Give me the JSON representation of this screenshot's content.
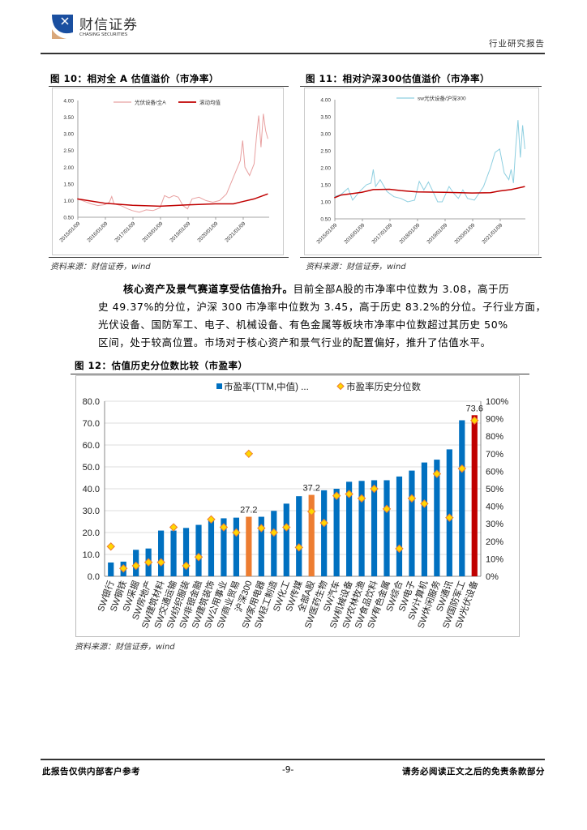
{
  "header": {
    "logo_cn": "财信证券",
    "logo_en": "CHASING SECURITIES",
    "doc_type": "行业研究报告"
  },
  "fig10": {
    "title": "图 10：相对全 A 估值溢价（市净率）",
    "source": "资料来源：财信证券，wind"
  },
  "fig11": {
    "title": "图 11：相对沪深300估值溢价（市净率）",
    "source": "资料来源：财信证券，wind"
  },
  "paragraph": {
    "bold_lead": "核心资产及景气赛道享受估值抬升。",
    "line1_rest": "目前全部A股的市净率中位数为 3.08，高于历",
    "line2": "史 49.37%的分位，沪深 300 市净率中位数为 3.45，高于历史 83.2%的分位。子行业方面，",
    "line3": "光伏设备、国防军工、电子、机械设备、有色金属等板块市净率中位数超过其历史 50%",
    "line4": "区间，处于较高位置。市场对于核心资产和景气行业的配置偏好，推升了估值水平。"
  },
  "fig12": {
    "title": "图 12：估值历史分位数比较（市盈率）",
    "source": "资料来源：财信证券，wind"
  },
  "footer": {
    "left": "此报告仅供内部客户参考",
    "page": "-9-",
    "right": "请务必阅读正文之后的免责条款部分"
  },
  "colors": {
    "bar_blue": "#0070C0",
    "bar_orange": "#ED7D31",
    "bar_red": "#C00000",
    "diamond": "#FFD700",
    "diamond_edge": "#ED7D31",
    "line_pink": "#E8A0A0",
    "line_red": "#C00000",
    "line_cyan": "#8ECFE0"
  },
  "chart_data": [
    {
      "type": "line",
      "title": "图 10：相对全 A 估值溢价（市净率）",
      "ylim": [
        0.5,
        4.0
      ],
      "yticks": [
        "0.50",
        "1.00",
        "1.50",
        "2.00",
        "2.50",
        "3.00",
        "3.50",
        "4.00"
      ],
      "xticks": [
        "2015/01/09",
        "2016/01/09",
        "2017/01/09",
        "2018/01/09",
        "2019/01/09",
        "2020/01/09",
        "2021/01/09"
      ],
      "legend_placement": "top",
      "series": [
        {
          "name": "光伏设备/全A",
          "color": "#E8A0A0",
          "points": [
            [
              "2015-01",
              1.05
            ],
            [
              "2015-04",
              0.98
            ],
            [
              "2015-07",
              0.9
            ],
            [
              "2015-10",
              0.85
            ],
            [
              "2016-01",
              0.88
            ],
            [
              "2016-03",
              0.95
            ],
            [
              "2016-04",
              1.12
            ],
            [
              "2016-05",
              0.9
            ],
            [
              "2016-08",
              0.85
            ],
            [
              "2016-11",
              0.75
            ],
            [
              "2017-01",
              0.7
            ],
            [
              "2017-04",
              0.65
            ],
            [
              "2017-07",
              0.72
            ],
            [
              "2017-10",
              0.7
            ],
            [
              "2018-01",
              0.78
            ],
            [
              "2018-03",
              1.15
            ],
            [
              "2018-05",
              1.08
            ],
            [
              "2018-07",
              1.15
            ],
            [
              "2018-09",
              1.1
            ],
            [
              "2018-11",
              0.85
            ],
            [
              "2019-01",
              0.75
            ],
            [
              "2019-03",
              1.05
            ],
            [
              "2019-06",
              1.1
            ],
            [
              "2019-09",
              1.0
            ],
            [
              "2019-12",
              0.95
            ],
            [
              "2020-03",
              1.0
            ],
            [
              "2020-06",
              1.2
            ],
            [
              "2020-09",
              1.7
            ],
            [
              "2020-12",
              2.2
            ],
            [
              "2021-01",
              2.8
            ],
            [
              "2021-02",
              2.0
            ],
            [
              "2021-04",
              1.75
            ],
            [
              "2021-06",
              2.1
            ],
            [
              "2021-07",
              2.9
            ],
            [
              "2021-08",
              3.55
            ],
            [
              "2021-09",
              2.6
            ],
            [
              "2021-10",
              3.6
            ],
            [
              "2021-11",
              3.1
            ],
            [
              "2021-12",
              2.85
            ]
          ]
        },
        {
          "name": "滚动均值",
          "color": "#C00000",
          "points": [
            [
              "2015-01",
              1.05
            ],
            [
              "2016-01",
              0.92
            ],
            [
              "2017-01",
              0.86
            ],
            [
              "2018-01",
              0.83
            ],
            [
              "2019-01",
              0.87
            ],
            [
              "2020-01",
              0.9
            ],
            [
              "2020-09",
              0.9
            ],
            [
              "2021-01",
              0.97
            ],
            [
              "2021-06",
              1.05
            ],
            [
              "2021-12",
              1.2
            ]
          ]
        }
      ]
    },
    {
      "type": "line",
      "title": "图 11：相对沪深300估值溢价（市净率）",
      "ylim": [
        0.5,
        4.0
      ],
      "yticks": [
        "0.50",
        "1.00",
        "1.50",
        "2.00",
        "2.50",
        "3.00",
        "3.50",
        "4.00"
      ],
      "xticks": [
        "2015/01/09",
        "2016/01/09",
        "2017/01/09",
        "2018/01/09",
        "2019/01/09",
        "2020/01/09",
        "2021/01/09"
      ],
      "legend_placement": "top",
      "series": [
        {
          "name": "sw光伏设备/沪深300",
          "color": "#8ECFE0",
          "points": [
            [
              "2015-01",
              1.15
            ],
            [
              "2015-04",
              1.22
            ],
            [
              "2015-07",
              1.4
            ],
            [
              "2015-09",
              1.05
            ],
            [
              "2015-12",
              1.3
            ],
            [
              "2016-03",
              1.5
            ],
            [
              "2016-05",
              1.55
            ],
            [
              "2016-06",
              1.95
            ],
            [
              "2016-07",
              1.45
            ],
            [
              "2016-09",
              1.65
            ],
            [
              "2016-12",
              1.3
            ],
            [
              "2017-03",
              1.15
            ],
            [
              "2017-06",
              1.1
            ],
            [
              "2017-09",
              1.0
            ],
            [
              "2017-12",
              1.05
            ],
            [
              "2018-02",
              1.6
            ],
            [
              "2018-04",
              1.35
            ],
            [
              "2018-06",
              1.58
            ],
            [
              "2018-08",
              1.3
            ],
            [
              "2018-10",
              1.0
            ],
            [
              "2018-12",
              1.0
            ],
            [
              "2019-03",
              1.45
            ],
            [
              "2019-05",
              1.25
            ],
            [
              "2019-07",
              1.1
            ],
            [
              "2019-09",
              1.35
            ],
            [
              "2019-11",
              1.1
            ],
            [
              "2020-02",
              1.05
            ],
            [
              "2020-04",
              1.25
            ],
            [
              "2020-06",
              1.45
            ],
            [
              "2020-09",
              2.0
            ],
            [
              "2020-11",
              2.45
            ],
            [
              "2021-01",
              2.55
            ],
            [
              "2021-03",
              1.85
            ],
            [
              "2021-05",
              1.65
            ],
            [
              "2021-06",
              1.95
            ],
            [
              "2021-07",
              1.55
            ],
            [
              "2021-08",
              2.6
            ],
            [
              "2021-09",
              3.4
            ],
            [
              "2021-10",
              2.3
            ],
            [
              "2021-11",
              3.25
            ],
            [
              "2021-12",
              2.55
            ]
          ]
        },
        {
          "color": "#C00000",
          "points": [
            [
              "2015-01",
              1.12
            ],
            [
              "2015-04",
              1.2
            ],
            [
              "2016-01",
              1.28
            ],
            [
              "2016-06",
              1.36
            ],
            [
              "2017-01",
              1.37
            ],
            [
              "2017-06",
              1.33
            ],
            [
              "2018-01",
              1.29
            ],
            [
              "2019-01",
              1.28
            ],
            [
              "2020-01",
              1.26
            ],
            [
              "2020-09",
              1.27
            ],
            [
              "2021-01",
              1.32
            ],
            [
              "2021-06",
              1.36
            ],
            [
              "2021-12",
              1.45
            ]
          ]
        }
      ]
    },
    {
      "type": "bar",
      "title": "图 12：估值历史分位数比较（市盈率）",
      "ylim": [
        0,
        80
      ],
      "yticks": [
        "0.0",
        "10.0",
        "20.0",
        "30.0",
        "40.0",
        "50.0",
        "60.0",
        "70.0",
        "80.0"
      ],
      "y2lim": [
        0,
        100
      ],
      "y2ticks": [
        "0%",
        "10%",
        "20%",
        "30%",
        "40%",
        "50%",
        "60%",
        "70%",
        "80%",
        "90%",
        "100%"
      ],
      "legend_placement": "top",
      "categories": [
        "SW银行",
        "SW钢铁",
        "SW采掘",
        "SW房地产",
        "SW建筑材料",
        "SW交通运输",
        "SW纺织服装",
        "SW非银金融",
        "SW建筑装饰",
        "SW公用事业",
        "SW商业贸易",
        "沪深300",
        "SW家用电器",
        "SW轻工制造",
        "SW化工",
        "SW传媒",
        "全部A股",
        "SW医药生物",
        "SW汽车",
        "SW机械设备",
        "SW农林牧渔",
        "SW食品饮料",
        "SW有色金属",
        "SW综合",
        "SW电子",
        "SW计算机",
        "SW休闲服务",
        "SW通讯",
        "SW国防军工",
        "SW光伏设备"
      ],
      "series": [
        {
          "name": "市盈率(TTM,中值) ...",
          "type": "bar",
          "values": [
            6.3,
            6.7,
            12.1,
            12.7,
            20.9,
            20.9,
            22.1,
            23.5,
            26.0,
            26.5,
            26.8,
            27.2,
            27.2,
            29.9,
            33.2,
            36.6,
            37.2,
            39.3,
            40.0,
            43.2,
            43.6,
            43.9,
            43.9,
            45.6,
            48.3,
            52.0,
            53.3,
            58.0,
            71.3,
            73.6
          ],
          "highlight": {
            "沪深300": "#ED7D31",
            "全部A股": "#ED7D31",
            "SW光伏设备": "#C00000"
          }
        },
        {
          "name": "市盈率历史分位数",
          "type": "scatter",
          "axis": "right",
          "values": [
            17,
            4.5,
            6,
            8,
            8,
            28,
            6,
            11,
            32.5,
            28,
            25,
            70,
            27.5,
            25,
            28,
            16.5,
            37,
            30.5,
            46,
            47,
            44.5,
            50,
            38.5,
            15.8,
            44.5,
            41.5,
            58.5,
            33.5,
            61.5,
            89
          ]
        }
      ],
      "data_labels": [
        {
          "category": "沪深300",
          "text": "27.2"
        },
        {
          "category": "全部A股",
          "text": "37.2"
        },
        {
          "category": "SW光伏设备",
          "text": "73.6"
        }
      ]
    }
  ]
}
